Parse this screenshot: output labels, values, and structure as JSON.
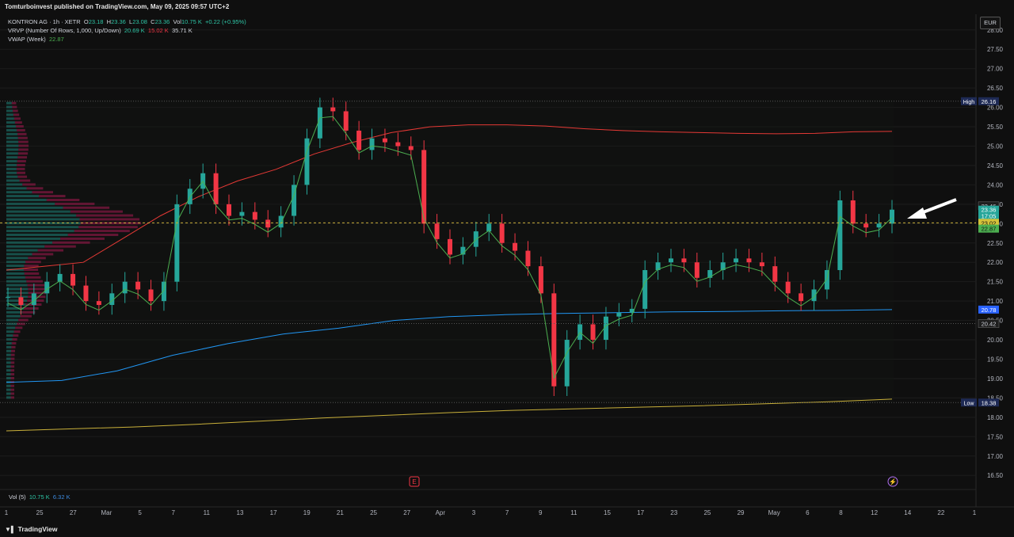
{
  "header": {
    "published_text": "Tomturboinvest published on TradingView.com, May 09, 2025 09:57 UTC+2"
  },
  "legend": {
    "symbol": "KONTRON AG · 1h · XETR",
    "o_label": "O",
    "o_value": "23.18",
    "h_label": "H",
    "h_value": "23.36",
    "l_label": "L",
    "l_value": "23.08",
    "c_label": "C",
    "c_value": "23.36",
    "vol_label": "Vol",
    "vol_value": "10.75 K",
    "change": "+0.22 (+0.95%)",
    "vrvp_label": "VRVP (Number Of Rows, 1,000, Up/Down)",
    "vrvp_up": "20.69 K",
    "vrvp_down": "15.02 K",
    "vrvp_total": "35.71 K",
    "vwap_label": "VWAP (Week)",
    "vwap_value": "22.87"
  },
  "currency_button": "EUR",
  "volume_legend": {
    "label": "Vol (5)",
    "v1": "10.75 K",
    "v2": "6.32 K"
  },
  "footer": {
    "brand": "TradingView"
  },
  "colors": {
    "up": "#26a69a",
    "down": "#f23645",
    "vwap": "#4caf50",
    "upper_band": "#e53935",
    "mid_band": "#2196f3",
    "lower_band": "#c9b03a",
    "background": "#0f0f0f"
  },
  "chart_data": {
    "type": "candlestick",
    "title": "KONTRON AG · 1h · XETR",
    "y_range": [
      16.3,
      28.2
    ],
    "y_ticks": [
      "28.00",
      "27.50",
      "27.00",
      "26.50",
      "26.00",
      "25.50",
      "25.00",
      "24.50",
      "24.00",
      "23.50",
      "23.00",
      "22.50",
      "22.00",
      "21.50",
      "21.00",
      "20.50",
      "20.00",
      "19.50",
      "19.00",
      "18.50",
      "18.00",
      "17.50",
      "17.00",
      "16.50"
    ],
    "x_ticks": [
      "1",
      "25",
      "27",
      "Mar",
      "5",
      "7",
      "11",
      "13",
      "17",
      "19",
      "21",
      "25",
      "27",
      "Apr",
      "3",
      "7",
      "9",
      "11",
      "15",
      "17",
      "23",
      "25",
      "29",
      "May",
      "6",
      "8",
      "12",
      "14",
      "22",
      "1"
    ],
    "price_labels": [
      {
        "text": "High",
        "value": "26.16",
        "price": 26.16,
        "kind": "hl"
      },
      {
        "text": "",
        "value": "23.46",
        "price": 23.46,
        "kind": "plain"
      },
      {
        "text": "",
        "value": "23.36",
        "price": 23.36,
        "kind": "last"
      },
      {
        "text": "",
        "value": "17:05",
        "price": 23.2,
        "kind": "last"
      },
      {
        "text": "",
        "value": "23.02",
        "price": 23.02,
        "kind": "poc"
      },
      {
        "text": "",
        "value": "22.87",
        "price": 22.87,
        "kind": "vwap"
      },
      {
        "text": "",
        "value": "20.78",
        "price": 20.78,
        "kind": "blue"
      },
      {
        "text": "",
        "value": "20.42",
        "price": 20.42,
        "kind": "plain"
      },
      {
        "text": "Low",
        "value": "18.38",
        "price": 18.38,
        "kind": "hl"
      }
    ],
    "close_series": [
      21.1,
      20.9,
      21.2,
      21.5,
      21.7,
      21.4,
      21.0,
      20.9,
      21.2,
      21.5,
      21.3,
      21.0,
      21.5,
      23.5,
      23.9,
      24.3,
      23.5,
      23.2,
      23.3,
      23.1,
      22.9,
      23.2,
      24.0,
      25.2,
      26.0,
      25.9,
      25.4,
      24.9,
      25.2,
      25.1,
      25.0,
      24.9,
      23.0,
      22.6,
      22.2,
      22.4,
      22.8,
      23.0,
      22.5,
      22.3,
      21.9,
      21.2,
      18.8,
      20.0,
      20.4,
      20.0,
      20.6,
      20.7,
      20.8,
      21.8,
      22.0,
      22.1,
      22.0,
      21.6,
      21.8,
      22.0,
      22.1,
      22.0,
      21.9,
      21.5,
      21.2,
      21.0,
      21.3,
      21.8,
      23.6,
      23.0,
      22.9,
      23.0,
      23.36
    ],
    "upper_band": [
      21.8,
      21.9,
      22.0,
      22.6,
      23.2,
      23.7,
      24.1,
      24.4,
      24.8,
      25.1,
      25.35,
      25.5,
      25.55,
      25.55,
      25.52,
      25.45,
      25.4,
      25.37,
      25.35,
      25.33,
      25.32,
      25.33,
      25.37,
      25.38
    ],
    "mid_band": [
      18.9,
      18.95,
      19.2,
      19.6,
      19.9,
      20.15,
      20.3,
      20.5,
      20.6,
      20.65,
      20.68,
      20.7,
      20.72,
      20.73,
      20.75,
      20.76,
      20.78
    ],
    "lower_band": [
      17.65,
      17.7,
      17.75,
      17.82,
      17.9,
      17.98,
      18.05,
      18.12,
      18.18,
      18.22,
      18.26,
      18.3,
      18.35,
      18.4,
      18.47
    ],
    "poc_price": 23.02,
    "vwap_price": 22.87
  }
}
